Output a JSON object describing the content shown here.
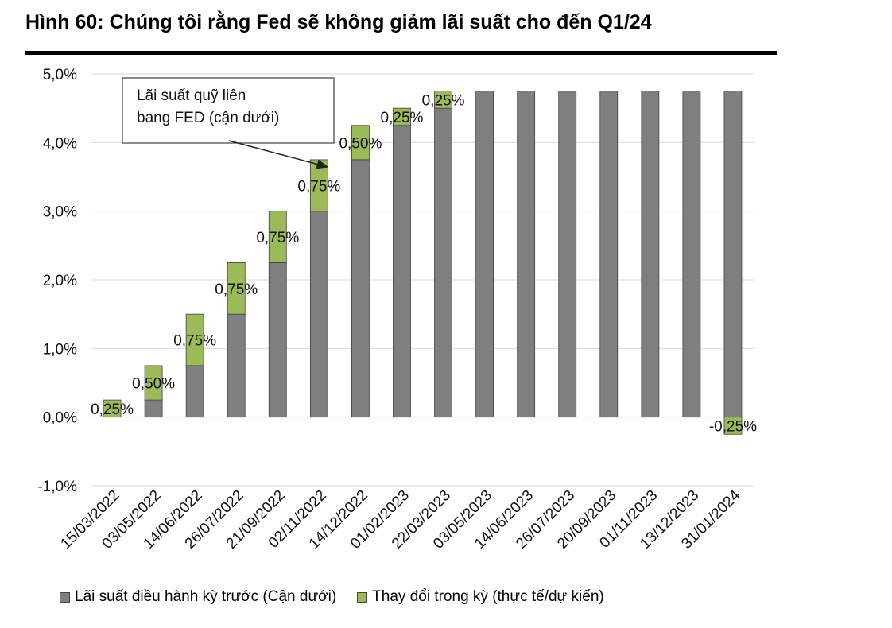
{
  "title": "Hình 60: Chúng tôi rằng Fed sẽ không giảm lãi suất cho đến Q1/24",
  "colors": {
    "base": "#7f7f80",
    "change": "#9bbb59",
    "grid": "#d9d9d9",
    "stroke": "#404040"
  },
  "chart_data": {
    "type": "bar",
    "stacked": true,
    "categories": [
      "15/03/2022",
      "03/05/2022",
      "14/06/2022",
      "26/07/2022",
      "21/09/2022",
      "02/11/2022",
      "14/12/2022",
      "01/02/2023",
      "22/03/2023",
      "03/05/2023",
      "14/06/2023",
      "26/07/2023",
      "20/09/2023",
      "01/11/2023",
      "13/12/2023",
      "31/01/2024"
    ],
    "series": [
      {
        "name": "Lãi suất điều hành kỳ trước (Cận dưới)",
        "values": [
          0,
          0.25,
          0.75,
          1.5,
          2.25,
          3.0,
          3.75,
          4.25,
          4.5,
          4.75,
          4.75,
          4.75,
          4.75,
          4.75,
          4.75,
          4.75
        ]
      },
      {
        "name": "Thay đổi trong kỳ (thực tế/dự kiến)",
        "values": [
          0.25,
          0.5,
          0.75,
          0.75,
          0.75,
          0.75,
          0.5,
          0.25,
          0.25,
          0,
          0,
          0,
          0,
          0,
          0,
          -0.25
        ]
      }
    ],
    "data_labels": [
      "0,25%",
      "0,50%",
      "0,75%",
      "0,75%",
      "0,75%",
      "0,75%",
      "0,50%",
      "0,25%",
      "0,25%",
      "",
      "",
      "",
      "",
      "",
      "",
      "-0,25%"
    ],
    "yticks": [
      "-1,0%",
      "0,0%",
      "1,0%",
      "2,0%",
      "3,0%",
      "4,0%",
      "5,0%"
    ],
    "ylim": [
      -1.0,
      5.0
    ],
    "ytick_values": [
      -1,
      0,
      1,
      2,
      3,
      4,
      5
    ],
    "annotation": {
      "lines": [
        "Lãi suất quỹ liên",
        "bang FED (cận dưới)"
      ],
      "target_category": "14/12/2022"
    },
    "grid": true,
    "legend_position": "bottom"
  }
}
